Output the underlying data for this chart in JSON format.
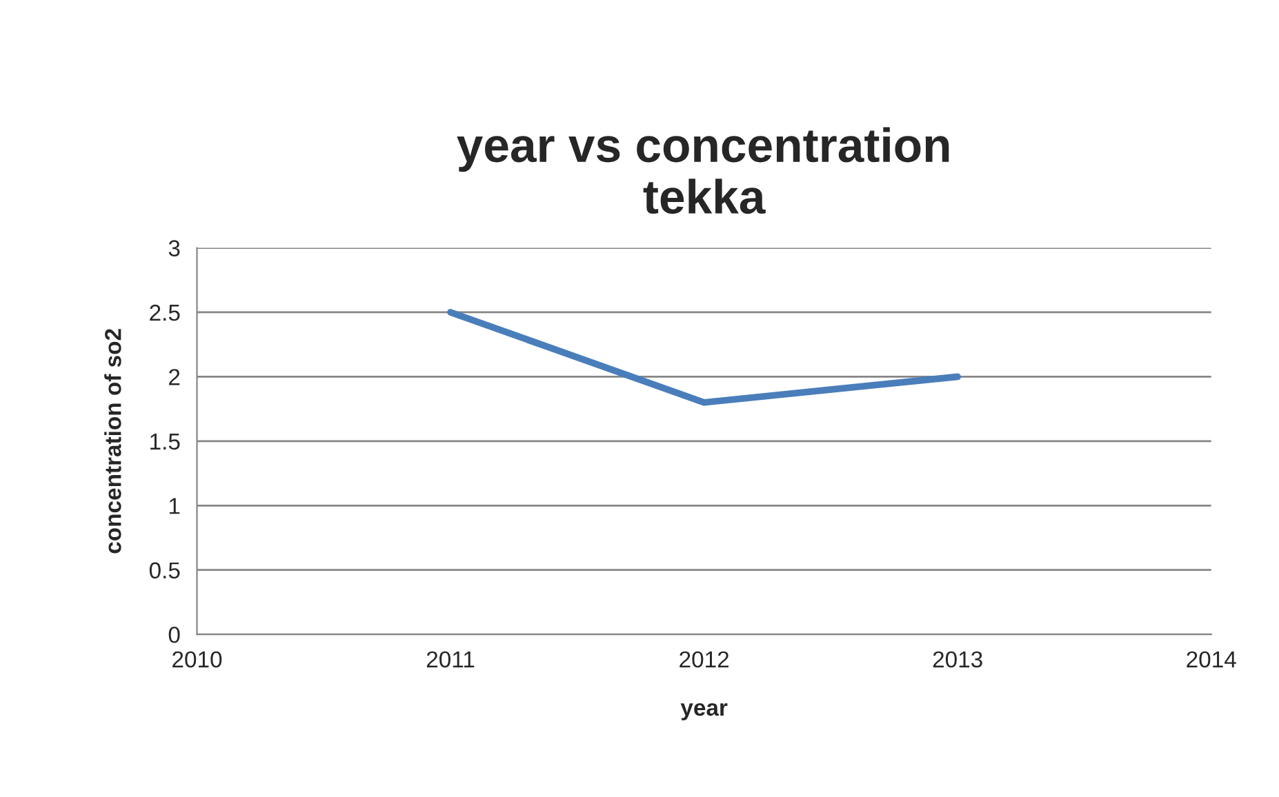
{
  "chart_data": {
    "type": "line",
    "title": "year vs concentration\ntekka",
    "xlabel": "year",
    "ylabel": "concentration of so2",
    "x": [
      2011,
      2012,
      2013
    ],
    "series": [
      {
        "color": "#4a7ebb",
        "values": [
          2.5,
          1.8,
          2.0
        ]
      }
    ],
    "xlim": [
      2010,
      2014
    ],
    "xticks": [
      2010,
      2011,
      2012,
      2013,
      2014
    ],
    "ylim": [
      0,
      3
    ],
    "yticks": [
      0,
      0.5,
      1,
      1.5,
      2,
      2.5,
      3
    ],
    "grid": "y",
    "marker": "none",
    "line_style": "solid"
  }
}
